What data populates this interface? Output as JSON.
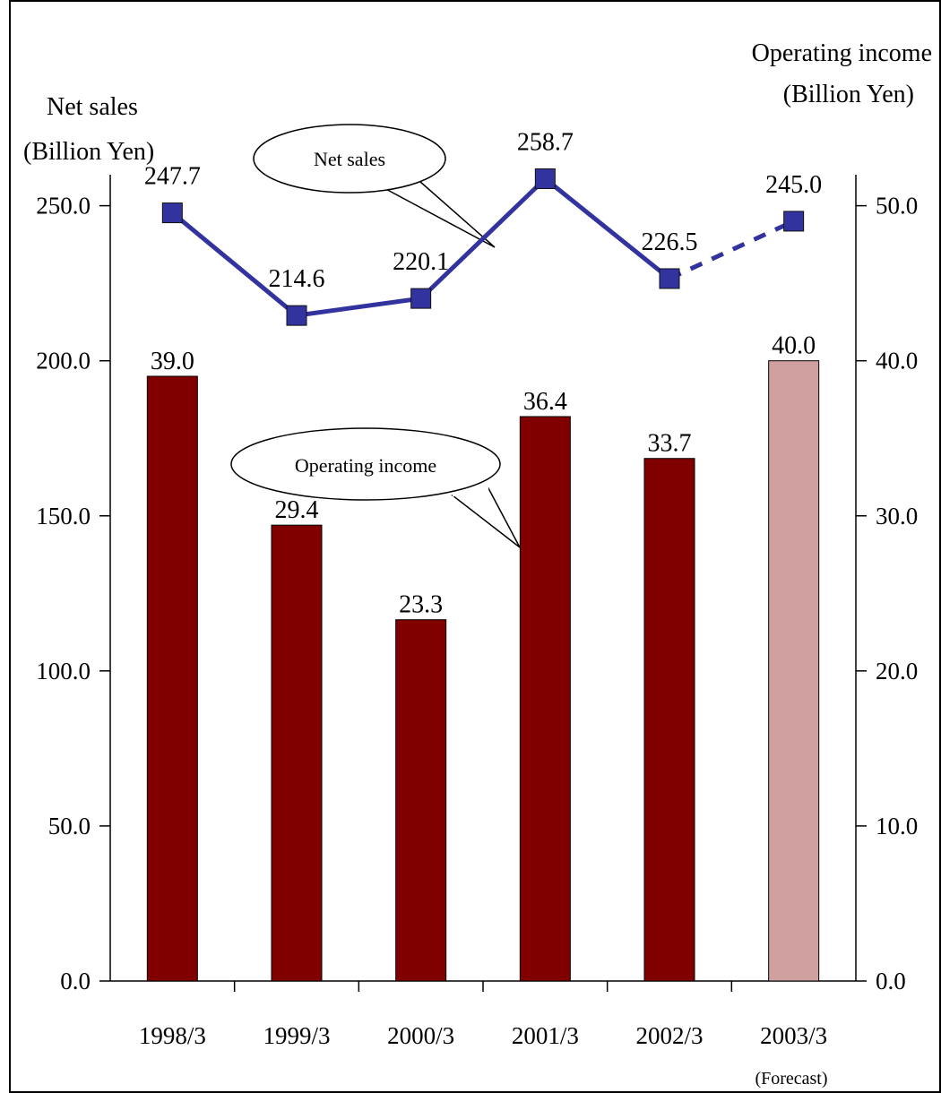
{
  "chart_data": {
    "type": "bar",
    "categories": [
      "1998/3",
      "1999/3",
      "2000/3",
      "2001/3",
      "2002/3",
      "2003/3"
    ],
    "category_note": "(Forecast)",
    "left_axis": {
      "title_line1": "Net sales",
      "title_line2": "(Billion Yen)",
      "range": [
        0,
        260
      ],
      "ticks": [
        "0.0",
        "50.0",
        "100.0",
        "150.0",
        "200.0",
        "250.0"
      ]
    },
    "right_axis": {
      "title_line1": "Operating income",
      "title_line2": "(Billion Yen)",
      "range": [
        0,
        52
      ],
      "ticks": [
        "0.0",
        "10.0",
        "20.0",
        "30.0",
        "40.0",
        "50.0"
      ]
    },
    "series": [
      {
        "name": "Operating income",
        "type": "bar",
        "axis": "right",
        "values": [
          39.0,
          29.4,
          23.3,
          36.4,
          33.7,
          40.0
        ],
        "labels": [
          "39.0",
          "29.4",
          "23.3",
          "36.4",
          "33.7",
          "40.0"
        ],
        "color": "#800000",
        "forecast_color": "#d09fa0"
      },
      {
        "name": "Net sales",
        "type": "line",
        "axis": "left",
        "values": [
          247.7,
          214.6,
          220.1,
          258.7,
          226.5,
          245.0
        ],
        "labels": [
          "247.7",
          "214.6",
          "220.1",
          "258.7",
          "226.5",
          "245.0"
        ],
        "color": "#3333a0",
        "forecast_dashed": true
      }
    ],
    "callouts": [
      "Net sales",
      "Operating income"
    ],
    "grid": false,
    "legend": "callouts"
  }
}
